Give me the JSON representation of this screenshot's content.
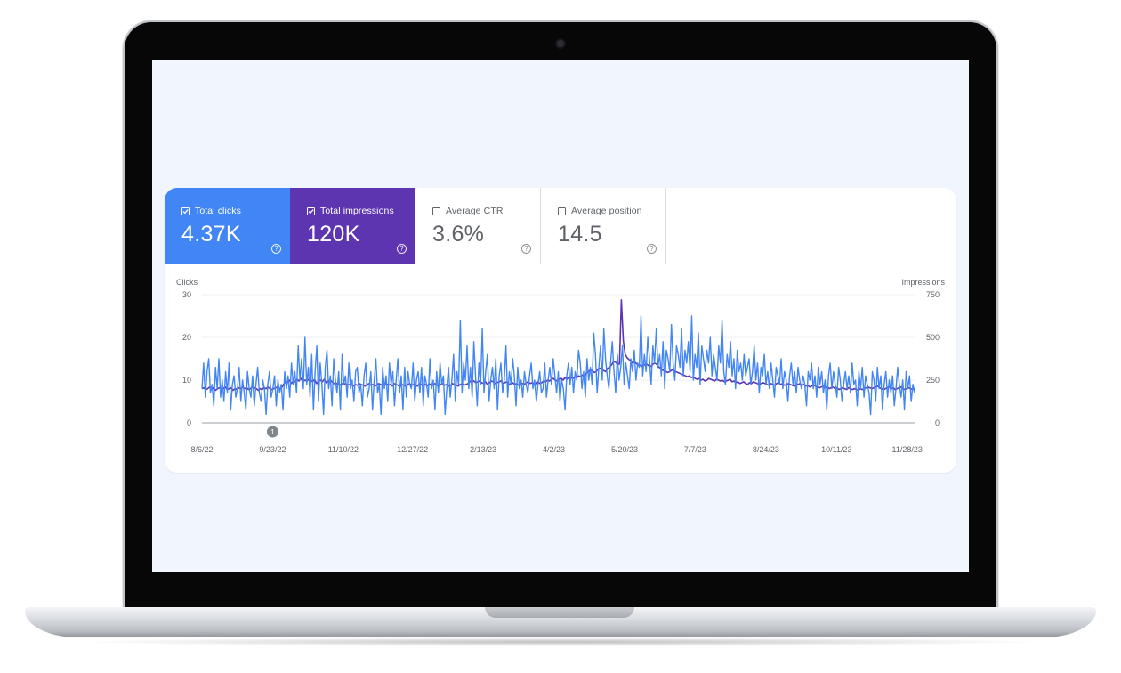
{
  "metrics": [
    {
      "label": "Total clicks",
      "value": "4.37K",
      "checked": true
    },
    {
      "label": "Total impressions",
      "value": "120K",
      "checked": true
    },
    {
      "label": "Average CTR",
      "value": "3.6%",
      "checked": false
    },
    {
      "label": "Average position",
      "value": "14.5",
      "checked": false
    }
  ],
  "colors": {
    "clicks": "#4285f4",
    "impressions": "#5e35b1"
  },
  "chart_data": {
    "type": "line",
    "ylabel_left": "Clicks",
    "ylabel_right": "Impressions",
    "ylim_left": [
      0,
      30
    ],
    "ylim_right": [
      0,
      750
    ],
    "yticks_left": [
      "30",
      "20",
      "10",
      "0"
    ],
    "yticks_right": [
      "750",
      "500",
      "250",
      "0"
    ],
    "xticks": [
      "8/6/22",
      "9/23/22",
      "11/10/22",
      "12/27/22",
      "2/13/23",
      "4/2/23",
      "5/20/23",
      "7/7/23",
      "8/24/23",
      "10/11/23",
      "11/28/23"
    ],
    "annotation": {
      "label": "1",
      "date": "9/23/22"
    },
    "grid": true,
    "series": [
      {
        "name": "Clicks",
        "axis": "left",
        "x_start": "8/6/22",
        "x_end": "12/3/23",
        "values": [
          8,
          14,
          6,
          12,
          15,
          7,
          9,
          4,
          13,
          8,
          15,
          6,
          10,
          5,
          12,
          7,
          14,
          3,
          9,
          11,
          6,
          8,
          13,
          5,
          10,
          7,
          3,
          12,
          8,
          6,
          11,
          4,
          9,
          13,
          7,
          5,
          10,
          8,
          2,
          9,
          12,
          6,
          8,
          11,
          4,
          10,
          7,
          9,
          3,
          12,
          8,
          11,
          6,
          14,
          9,
          12,
          7,
          18,
          10,
          15,
          8,
          20,
          9,
          13,
          6,
          16,
          3,
          12,
          18,
          5,
          14,
          9,
          2,
          13,
          17,
          8,
          11,
          4,
          15,
          10,
          7,
          12,
          3,
          16,
          9,
          11,
          6,
          14,
          8,
          10,
          5,
          12,
          13,
          7,
          9,
          4,
          11,
          14,
          6,
          8,
          12,
          3,
          10,
          15,
          7,
          9,
          2,
          13,
          8,
          11,
          5,
          14,
          9,
          12,
          4,
          10,
          15,
          7,
          11,
          3,
          13,
          6,
          12,
          9,
          8,
          14,
          5,
          10,
          12,
          7,
          13,
          4,
          11,
          9,
          6,
          15,
          8,
          10,
          3,
          12,
          7,
          14,
          9,
          11,
          2,
          8,
          13,
          6,
          10,
          16,
          5,
          12,
          9,
          24,
          7,
          14,
          10,
          18,
          8,
          13,
          6,
          19,
          11,
          4,
          14,
          9,
          22,
          7,
          12,
          16,
          5,
          10,
          13,
          8,
          15,
          3,
          11,
          14,
          7,
          10,
          18,
          6,
          12,
          9,
          15,
          11,
          4,
          13,
          8,
          10,
          6,
          12,
          9,
          7,
          11,
          14,
          8,
          10,
          5,
          9,
          12,
          7,
          8,
          14,
          6,
          10,
          13,
          9,
          15,
          11,
          7,
          12,
          5,
          10,
          8,
          3,
          11,
          14,
          9,
          13,
          7,
          12,
          10,
          17,
          14,
          8,
          12,
          6,
          15,
          10,
          13,
          9,
          21,
          16,
          7,
          13,
          18,
          10,
          22,
          15,
          11,
          8,
          14,
          19,
          12,
          7,
          16,
          10,
          13,
          18,
          9,
          14,
          11,
          8,
          15,
          12,
          17,
          10,
          14,
          13,
          25,
          11,
          16,
          12,
          20,
          15,
          9,
          18,
          14,
          22,
          13,
          16,
          11,
          19,
          8,
          17,
          15,
          12,
          23,
          14,
          10,
          18,
          16,
          13,
          22,
          11,
          17,
          14,
          19,
          12,
          25,
          10,
          16,
          13,
          21,
          9,
          18,
          15,
          12,
          17,
          14,
          20,
          11,
          16,
          13,
          10,
          18,
          14,
          24,
          12,
          9,
          16,
          13,
          19,
          11,
          15,
          8,
          17,
          12,
          14,
          10,
          16,
          11,
          13,
          15,
          9,
          12,
          18,
          10,
          14,
          7,
          13,
          11,
          16,
          9,
          12,
          8,
          14,
          10,
          6,
          13,
          11,
          9,
          15,
          8,
          12,
          10,
          5,
          11,
          14,
          9,
          12,
          7,
          13,
          10,
          8,
          11,
          9,
          4,
          12,
          10,
          14,
          8,
          11,
          6,
          13,
          9,
          12,
          7,
          10,
          3,
          11,
          14,
          8,
          12,
          9,
          6,
          13,
          10,
          5,
          9,
          12,
          8,
          11,
          7,
          14,
          9,
          10,
          4,
          12,
          8,
          13,
          6,
          11,
          9,
          7,
          2,
          12,
          10,
          5,
          13,
          8,
          11,
          3,
          9,
          12,
          6,
          10,
          7,
          11,
          4,
          8,
          13,
          9,
          6,
          10,
          3,
          12,
          8,
          11,
          5,
          9,
          7
        ]
      },
      {
        "name": "Impressions",
        "axis": "right",
        "x_start": "8/6/22",
        "x_end": "12/3/23",
        "values": [
          200,
          205,
          195,
          200,
          210,
          195,
          205,
          190,
          200,
          205,
          195,
          200,
          210,
          195,
          200,
          205,
          190,
          200,
          195,
          205,
          200,
          210,
          200,
          205,
          195,
          200,
          210,
          205,
          200,
          190,
          200,
          195,
          205,
          200,
          210,
          200,
          195,
          200,
          205,
          210,
          200,
          205,
          225,
          245,
          235,
          250,
          230,
          245,
          240,
          255,
          245,
          260,
          240,
          250,
          245,
          255,
          250,
          240,
          255,
          230,
          245,
          250,
          240,
          255,
          235,
          245,
          250,
          240,
          230,
          225,
          235,
          220,
          230,
          225,
          230,
          220,
          225,
          230,
          215,
          225,
          220,
          230,
          225,
          220,
          215,
          225,
          230,
          220,
          225,
          215,
          220,
          230,
          225,
          220,
          225,
          230,
          220,
          225,
          215,
          230,
          225,
          220,
          210,
          225,
          220,
          215,
          225,
          230,
          220,
          225,
          220,
          215,
          230,
          225,
          220,
          225,
          215,
          230,
          220,
          225,
          230,
          220,
          215,
          225,
          230,
          220,
          225,
          215,
          220,
          230,
          225,
          220,
          215,
          225,
          230,
          220,
          225,
          230,
          240,
          250,
          245,
          235,
          240,
          245,
          235,
          230,
          240,
          225,
          235,
          245,
          240,
          230,
          235,
          240,
          245,
          230,
          235,
          240,
          225,
          230,
          235,
          225,
          230,
          220,
          235,
          230,
          225,
          235,
          240,
          230,
          235,
          230,
          225,
          240,
          230,
          235,
          245,
          240,
          250,
          245,
          255,
          260,
          250,
          245,
          255,
          260,
          250,
          265,
          255,
          270,
          265,
          260,
          270,
          265,
          275,
          270,
          280,
          275,
          290,
          300,
          310,
          305,
          295,
          300,
          315,
          320,
          310,
          305,
          300,
          320,
          325,
          340,
          360,
          355,
          340,
          345,
          720,
          480,
          400,
          380,
          370,
          360,
          350,
          355,
          345,
          340,
          335,
          330,
          340,
          345,
          335,
          330,
          340,
          350,
          345,
          330,
          320,
          310,
          305,
          300,
          295,
          300,
          310,
          305,
          300,
          295,
          290,
          285,
          280,
          275,
          270,
          275,
          265,
          270,
          260,
          255,
          260,
          250,
          255,
          245,
          250,
          260,
          255,
          250,
          245,
          255,
          250,
          245,
          250,
          240,
          245,
          250,
          255,
          240,
          245,
          235,
          240,
          230,
          235,
          240,
          230,
          225,
          235,
          230,
          240,
          235,
          230,
          225,
          230,
          235,
          230,
          225,
          220,
          230,
          225,
          220,
          230,
          235,
          225,
          230,
          220,
          225,
          230,
          225,
          220,
          215,
          220,
          225,
          230,
          220,
          225,
          215,
          220,
          210,
          215,
          220,
          215,
          210,
          205,
          210,
          215,
          205,
          210,
          200,
          205,
          210,
          200,
          205,
          195,
          200,
          205,
          200,
          195,
          205,
          200,
          195,
          200,
          195,
          190,
          200,
          195,
          200,
          205,
          210,
          205,
          200,
          205,
          210,
          215,
          205,
          200,
          195,
          200,
          205,
          210,
          200,
          205,
          195,
          200,
          205,
          210,
          200,
          195,
          200,
          205,
          200,
          195,
          200
        ]
      }
    ]
  }
}
